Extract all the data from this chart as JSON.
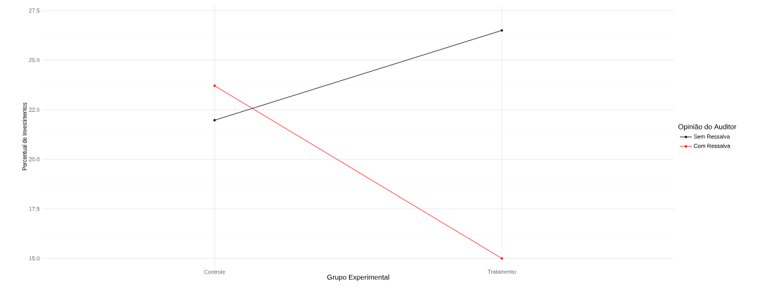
{
  "chart_data": {
    "type": "line",
    "xlabel": "Grupo Experimental",
    "ylabel": "Percentual de Investimentos",
    "legend_title": "Opinião do Auditor",
    "categories": [
      "Controle",
      "Tratamento"
    ],
    "series": [
      {
        "name": "Sem Ressalva",
        "color": "#000000",
        "values": [
          21.97,
          26.5
        ]
      },
      {
        "name": "Com Ressalva",
        "color": "#ff0000",
        "values": [
          23.71,
          15.0
        ]
      }
    ],
    "ylim": [
      14.55,
      27.75
    ],
    "yticks": [
      {
        "value": 15,
        "label": "15.0"
      },
      {
        "value": 17.5,
        "label": "17.5"
      },
      {
        "value": 20,
        "label": "20.0"
      },
      {
        "value": 22.5,
        "label": "22.5"
      },
      {
        "value": 25,
        "label": "25.0"
      },
      {
        "value": 27.5,
        "label": "27.5"
      }
    ],
    "grid": true,
    "legend": "right",
    "marker": "circle",
    "line_style": "solid"
  }
}
